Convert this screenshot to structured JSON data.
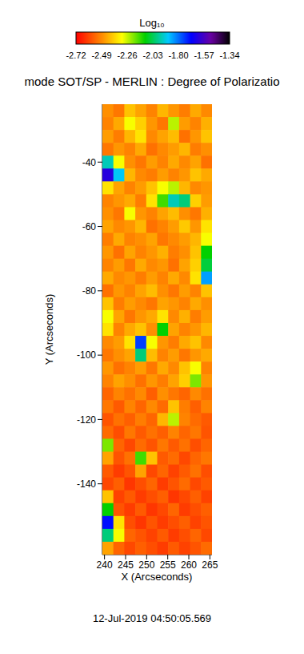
{
  "chart_data": {
    "type": "heatmap",
    "title": "mode SOT/SP - MERLIN : Degree of Polarizatio",
    "x_label": "X (Arcseconds)",
    "y_label": "Y (Arcseconds)",
    "annotation": "12-Jul-2019 04:50:05.569",
    "xlim": [
      239.5,
      265.5
    ],
    "ylim": [
      -162,
      -22
    ],
    "xticks": [
      240,
      245,
      250,
      255,
      260,
      265
    ],
    "yticks": [
      -40,
      -60,
      -80,
      -100,
      -120,
      -140
    ],
    "x": [
      240.8,
      243.4,
      246,
      248.6,
      251.2,
      253.8,
      256.4,
      259,
      261.6,
      264.2
    ],
    "y": [
      -24,
      -28,
      -32,
      -36,
      -40,
      -44,
      -48,
      -52,
      -56,
      -60,
      -64,
      -68,
      -72,
      -76,
      -80,
      -84,
      -88,
      -92,
      -96,
      -100,
      -104,
      -108,
      -112,
      -116,
      -120,
      -124,
      -128,
      -132,
      -136,
      -140,
      -144,
      -148,
      -152,
      -156,
      -160
    ],
    "z": [
      [
        -2.48,
        -2.52,
        -2.4,
        -2.45,
        -2.5,
        -2.42,
        -2.47,
        -2.51,
        -2.44,
        -2.49
      ],
      [
        -2.5,
        -2.44,
        -2.3,
        -2.38,
        -2.47,
        -2.52,
        -2.25,
        -2.46,
        -2.5,
        -2.43
      ],
      [
        -2.46,
        -2.51,
        -2.42,
        -2.35,
        -2.49,
        -2.45,
        -2.41,
        -2.53,
        -2.47,
        -2.4
      ],
      [
        -2.52,
        -2.47,
        -2.5,
        -2.44,
        -2.53,
        -2.49,
        -2.46,
        -2.42,
        -2.51,
        -2.48
      ],
      [
        -1.95,
        -2.3,
        -2.48,
        -2.52,
        -2.46,
        -2.5,
        -2.44,
        -2.49,
        -2.45,
        -2.53
      ],
      [
        -1.62,
        -1.9,
        -2.42,
        -2.49,
        -2.51,
        -2.46,
        -2.5,
        -2.47,
        -2.4,
        -2.44
      ],
      [
        -2.35,
        -2.45,
        -2.5,
        -2.46,
        -2.4,
        -2.3,
        -2.25,
        -2.42,
        -2.49,
        -2.47
      ],
      [
        -2.5,
        -2.47,
        -2.44,
        -2.51,
        -2.35,
        -2.15,
        -1.95,
        -2.0,
        -2.38,
        -2.46
      ],
      [
        -2.48,
        -2.52,
        -2.3,
        -2.47,
        -2.5,
        -2.45,
        -2.41,
        -2.48,
        -2.52,
        -2.43
      ],
      [
        -2.45,
        -2.49,
        -2.47,
        -2.42,
        -2.53,
        -2.5,
        -2.46,
        -2.39,
        -2.47,
        -2.35
      ],
      [
        -2.51,
        -2.44,
        -2.5,
        -2.48,
        -2.45,
        -2.52,
        -2.49,
        -2.46,
        -2.42,
        -2.3
      ],
      [
        -2.47,
        -2.53,
        -2.45,
        -2.5,
        -2.47,
        -2.43,
        -2.51,
        -2.48,
        -2.4,
        -2.1
      ],
      [
        -2.5,
        -2.46,
        -2.52,
        -2.44,
        -2.49,
        -2.47,
        -2.53,
        -2.45,
        -2.38,
        -2.05
      ],
      [
        -2.44,
        -2.49,
        -2.47,
        -2.51,
        -2.46,
        -2.5,
        -2.44,
        -2.49,
        -2.35,
        -1.85
      ],
      [
        -2.53,
        -2.47,
        -2.5,
        -2.45,
        -2.41,
        -2.48,
        -2.52,
        -2.46,
        -2.5,
        -2.4
      ],
      [
        -2.4,
        -2.51,
        -2.46,
        -2.49,
        -2.52,
        -2.45,
        -2.47,
        -2.5,
        -2.44,
        -2.48
      ],
      [
        -2.3,
        -2.45,
        -2.52,
        -2.47,
        -2.44,
        -2.35,
        -2.49,
        -2.43,
        -2.51,
        -2.46
      ],
      [
        -2.35,
        -2.5,
        -2.44,
        -2.4,
        -2.48,
        -2.1,
        -2.45,
        -2.5,
        -2.47,
        -2.42
      ],
      [
        -2.49,
        -2.46,
        -2.35,
        -1.75,
        -2.3,
        -2.47,
        -2.51,
        -2.44,
        -2.4,
        -2.49
      ],
      [
        -2.52,
        -2.48,
        -2.45,
        -2.0,
        -2.41,
        -2.5,
        -2.46,
        -2.52,
        -2.47,
        -2.44
      ],
      [
        -2.47,
        -2.53,
        -2.5,
        -2.46,
        -2.52,
        -2.44,
        -2.49,
        -2.4,
        -2.3,
        -2.5
      ],
      [
        -2.5,
        -2.45,
        -2.48,
        -2.53,
        -2.47,
        -2.51,
        -2.45,
        -2.38,
        -2.2,
        -2.47
      ],
      [
        -2.55,
        -2.5,
        -2.53,
        -2.49,
        -2.56,
        -2.48,
        -2.52,
        -2.55,
        -2.49,
        -2.53
      ],
      [
        -2.52,
        -2.57,
        -2.5,
        -2.55,
        -2.49,
        -2.54,
        -2.4,
        -2.51,
        -2.56,
        -2.5
      ],
      [
        -2.58,
        -2.53,
        -2.56,
        -2.51,
        -2.55,
        -2.42,
        -2.25,
        -2.5,
        -2.54,
        -2.57
      ],
      [
        -2.54,
        -2.59,
        -2.52,
        -2.57,
        -2.53,
        -2.56,
        -2.5,
        -2.55,
        -2.52,
        -2.58
      ],
      [
        -2.2,
        -2.55,
        -2.6,
        -2.54,
        -2.58,
        -2.52,
        -2.57,
        -2.53,
        -2.59,
        -2.55
      ],
      [
        -2.45,
        -2.58,
        -2.53,
        -2.15,
        -2.4,
        -2.57,
        -2.54,
        -2.6,
        -2.55,
        -2.52
      ],
      [
        -2.57,
        -2.62,
        -2.58,
        -2.45,
        -2.6,
        -2.55,
        -2.61,
        -2.57,
        -2.53,
        -2.59
      ],
      [
        -2.6,
        -2.56,
        -2.63,
        -2.59,
        -2.55,
        -2.62,
        -2.58,
        -2.54,
        -2.6,
        -2.57
      ],
      [
        -2.4,
        -2.61,
        -2.57,
        -2.62,
        -2.59,
        -2.56,
        -2.63,
        -2.6,
        -2.56,
        -2.61
      ],
      [
        -2.1,
        -2.58,
        -2.62,
        -2.57,
        -2.63,
        -2.6,
        -2.55,
        -2.62,
        -2.59,
        -2.56
      ],
      [
        -1.7,
        -2.35,
        -2.59,
        -2.63,
        -2.58,
        -2.62,
        -2.59,
        -2.56,
        -2.61,
        -2.58
      ],
      [
        -2.0,
        -2.3,
        -2.55,
        -2.58,
        -2.61,
        -2.57,
        -2.62,
        -2.59,
        -2.55,
        -2.6
      ],
      [
        -2.45,
        -2.55,
        -2.6,
        -2.56,
        -2.59,
        -2.62,
        -2.57,
        -2.61,
        -2.58,
        -2.54
      ]
    ],
    "colorbar": {
      "label": "Log₁₀",
      "range": [
        -2.72,
        -1.34
      ],
      "ticks": [
        -2.72,
        -2.49,
        -2.26,
        -2.03,
        {
          "value": -1.8,
          "label": "-1.80"
        },
        -1.57,
        -1.34
      ]
    }
  }
}
